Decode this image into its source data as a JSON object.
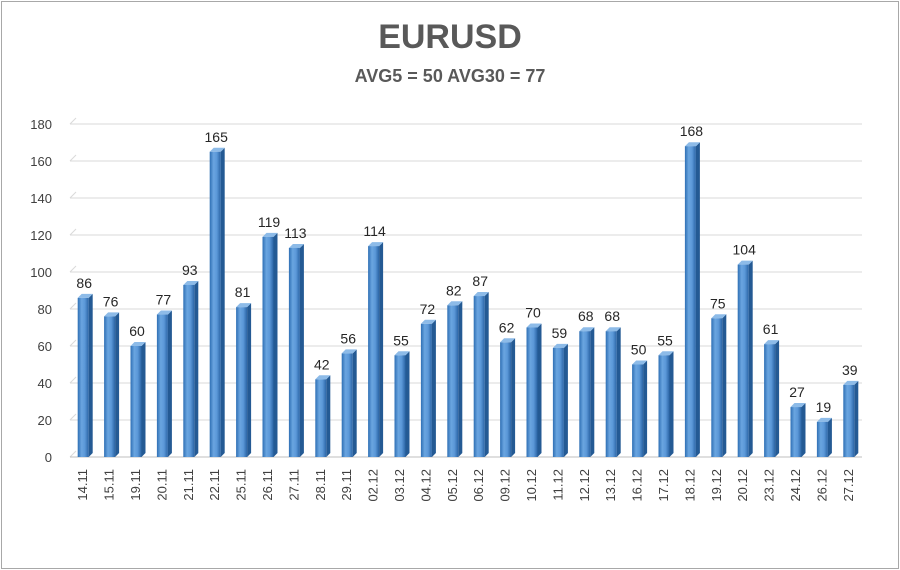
{
  "chart_data": {
    "type": "bar",
    "title": "EURUSD",
    "subtitle": "AVG5 = 50 AVG30 = 77",
    "categories": [
      "14.11",
      "15.11",
      "19.11",
      "20.11",
      "21.11",
      "22.11",
      "25.11",
      "26.11",
      "27.11",
      "28.11",
      "29.11",
      "02.12",
      "03.12",
      "04.12",
      "05.12",
      "06.12",
      "09.12",
      "10.12",
      "11.12",
      "12.12",
      "13.12",
      "16.12",
      "17.12",
      "18.12",
      "19.12",
      "20.12",
      "23.12",
      "24.12",
      "26.12",
      "27.12"
    ],
    "values": [
      86,
      76,
      60,
      77,
      93,
      165,
      81,
      119,
      113,
      42,
      56,
      114,
      55,
      72,
      82,
      87,
      62,
      70,
      59,
      68,
      68,
      50,
      55,
      168,
      75,
      104,
      61,
      27,
      19,
      39
    ],
    "ylim": [
      0,
      180
    ],
    "yticks": [
      0,
      20,
      40,
      60,
      80,
      100,
      120,
      140,
      160,
      180
    ],
    "grid": true,
    "legend": "none",
    "bar_color": "#4f8fd0"
  }
}
